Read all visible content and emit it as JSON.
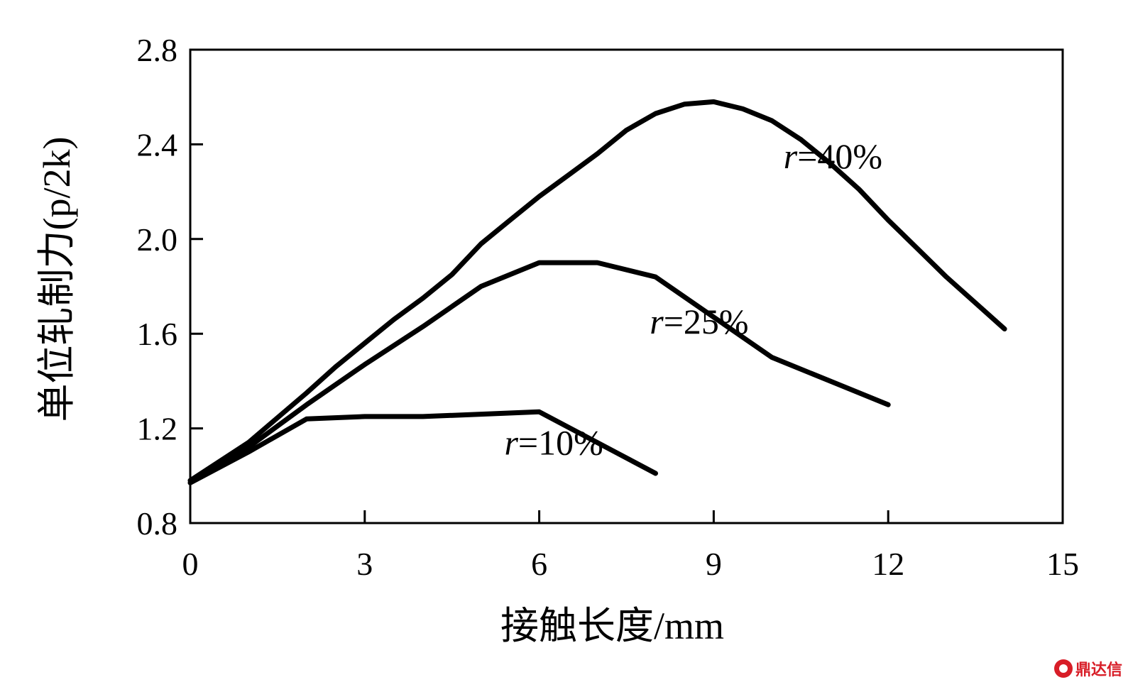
{
  "chart_data": {
    "type": "line",
    "title": "",
    "xlabel": "接触长度/mm",
    "ylabel": "单位轧制力(p/2k)",
    "xlim": [
      0,
      15
    ],
    "ylim": [
      0.8,
      2.8
    ],
    "xticks": [
      0,
      3,
      6,
      9,
      12,
      15
    ],
    "yticks": [
      0.8,
      1.2,
      1.6,
      2.0,
      2.4,
      2.8
    ],
    "xtick_labels": [
      "0",
      "3",
      "6",
      "9",
      "12",
      "15"
    ],
    "ytick_labels": [
      "0.8",
      "1.2",
      "1.6",
      "2.0",
      "2.4",
      "2.8"
    ],
    "grid": false,
    "line_color": "#000000",
    "series": [
      {
        "name": "r=40%",
        "label_var": "r",
        "label_rest": "=40%",
        "label_anchor": [
          10.2,
          2.3
        ],
        "points": [
          [
            0,
            0.98
          ],
          [
            1,
            1.14
          ],
          [
            2,
            1.35
          ],
          [
            2.5,
            1.46
          ],
          [
            3,
            1.56
          ],
          [
            3.5,
            1.66
          ],
          [
            4,
            1.75
          ],
          [
            4.5,
            1.85
          ],
          [
            5,
            1.98
          ],
          [
            5.5,
            2.08
          ],
          [
            6,
            2.18
          ],
          [
            6.5,
            2.27
          ],
          [
            7,
            2.36
          ],
          [
            7.5,
            2.46
          ],
          [
            8,
            2.53
          ],
          [
            8.5,
            2.57
          ],
          [
            9,
            2.58
          ],
          [
            9.5,
            2.55
          ],
          [
            10,
            2.5
          ],
          [
            10.5,
            2.42
          ],
          [
            11,
            2.32
          ],
          [
            11.5,
            2.21
          ],
          [
            12,
            2.08
          ],
          [
            12.5,
            1.96
          ],
          [
            13,
            1.84
          ],
          [
            13.5,
            1.73
          ],
          [
            14,
            1.62
          ]
        ]
      },
      {
        "name": "r=25%",
        "label_var": "r",
        "label_rest": "=25%",
        "label_anchor": [
          7.9,
          1.6
        ],
        "points": [
          [
            0,
            0.98
          ],
          [
            1,
            1.12
          ],
          [
            2,
            1.3
          ],
          [
            3,
            1.47
          ],
          [
            4,
            1.63
          ],
          [
            5,
            1.8
          ],
          [
            6,
            1.9
          ],
          [
            7,
            1.9
          ],
          [
            8,
            1.84
          ],
          [
            9,
            1.67
          ],
          [
            10,
            1.5
          ],
          [
            11,
            1.4
          ],
          [
            12,
            1.3
          ]
        ]
      },
      {
        "name": "r=10%",
        "label_var": "r",
        "label_rest": "=10%",
        "label_anchor": [
          5.4,
          1.09
        ],
        "points": [
          [
            0,
            0.97
          ],
          [
            1,
            1.1
          ],
          [
            2,
            1.24
          ],
          [
            3,
            1.25
          ],
          [
            4,
            1.25
          ],
          [
            5,
            1.26
          ],
          [
            6,
            1.27
          ],
          [
            7,
            1.14
          ],
          [
            8,
            1.01
          ]
        ]
      }
    ]
  },
  "watermark": {
    "text": "鼎达信",
    "color": "#d81e28"
  }
}
